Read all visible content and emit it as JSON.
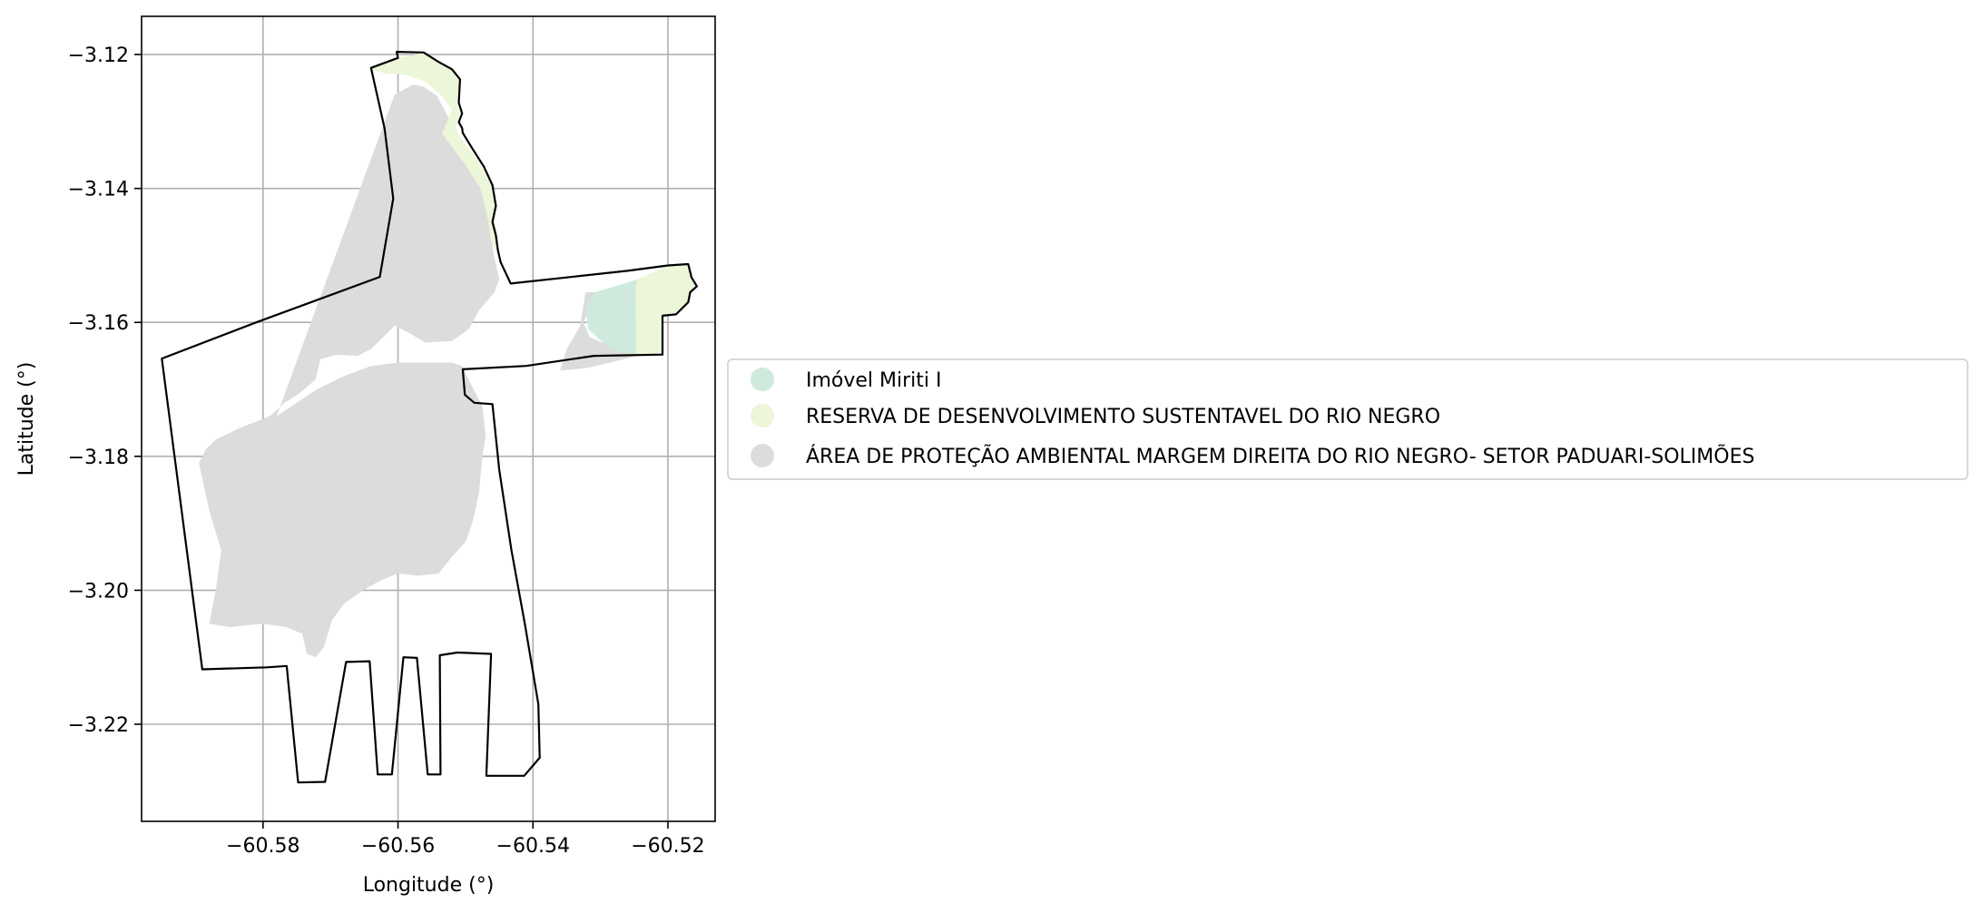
{
  "map": {
    "x_axis": {
      "label": "Longitude (°)",
      "range": [
        -60.598,
        -60.513
      ],
      "ticks": [
        -60.58,
        -60.56,
        -60.54,
        -60.52
      ],
      "tick_labels": [
        "−60.58",
        "−60.56",
        "−60.54",
        "−60.52"
      ]
    },
    "y_axis": {
      "label": "Latitude (°)",
      "range": [
        -3.2345,
        -3.1143
      ],
      "ticks": [
        -3.12,
        -3.14,
        -3.16,
        -3.18,
        -3.2,
        -3.22
      ],
      "tick_labels": [
        "−3.12",
        "−3.14",
        "−3.16",
        "−3.18",
        "−3.20",
        "−3.22"
      ]
    },
    "grid": true,
    "legend": {
      "placement": "center-left outside plot",
      "entries": [
        {
          "label": "Imóvel Miriti I",
          "color": "#cfeadc"
        },
        {
          "label": "RESERVA DE DESENVOLVIMENTO SUSTENTAVEL DO RIO NEGRO",
          "color": "#ecf6d8"
        },
        {
          "label": "ÁREA DE PROTEÇÃO AMBIENTAL MARGEM DIREITA DO RIO NEGRO- SETOR PADUARI-SOLIMÕES",
          "color": "#dcdcdc"
        }
      ]
    },
    "layers": {
      "boundary": {
        "color": "#000000",
        "rings": [
          [
            [
              -60.5602,
              -3.1196
            ],
            [
              -60.5562,
              -3.1197
            ],
            [
              -60.554,
              -3.1211
            ],
            [
              -60.552,
              -3.1222
            ],
            [
              -60.5508,
              -3.1237
            ],
            [
              -60.551,
              -3.1272
            ],
            [
              -60.5505,
              -3.1288
            ],
            [
              -60.551,
              -3.1301
            ],
            [
              -60.5505,
              -3.131
            ],
            [
              -60.5504,
              -3.1317
            ],
            [
              -60.549,
              -3.134
            ],
            [
              -60.5473,
              -3.1367
            ],
            [
              -60.546,
              -3.1395
            ],
            [
              -60.5455,
              -3.1426
            ],
            [
              -60.546,
              -3.145
            ],
            [
              -60.5455,
              -3.147
            ],
            [
              -60.5452,
              -3.1492
            ],
            [
              -60.5448,
              -3.151
            ],
            [
              -60.5433,
              -3.1542
            ],
            [
              -60.526,
              -3.1523
            ],
            [
              -60.52,
              -3.1515
            ],
            [
              -60.517,
              -3.1513
            ],
            [
              -60.5165,
              -3.1533
            ],
            [
              -60.5157,
              -3.1546
            ],
            [
              -60.5167,
              -3.1555
            ],
            [
              -60.517,
              -3.157
            ],
            [
              -60.5188,
              -3.1588
            ],
            [
              -60.5208,
              -3.159
            ],
            [
              -60.5208,
              -3.1648
            ],
            [
              -60.531,
              -3.165
            ],
            [
              -60.541,
              -3.1665
            ],
            [
              -60.5504,
              -3.167
            ],
            [
              -60.5501,
              -3.1708
            ],
            [
              -60.5487,
              -3.172
            ],
            [
              -60.546,
              -3.1722
            ],
            [
              -60.545,
              -3.182
            ],
            [
              -60.5432,
              -3.194
            ],
            [
              -60.5412,
              -3.205
            ],
            [
              -60.5392,
              -3.217
            ],
            [
              -60.539,
              -3.225
            ],
            [
              -60.5413,
              -3.2277
            ],
            [
              -60.5469,
              -3.2277
            ],
            [
              -60.5462,
              -3.2095
            ],
            [
              -60.5512,
              -3.2093
            ],
            [
              -60.5538,
              -3.2097
            ],
            [
              -60.5537,
              -3.2275
            ],
            [
              -60.5556,
              -3.2275
            ],
            [
              -60.5572,
              -3.2101
            ],
            [
              -60.5592,
              -3.21
            ],
            [
              -60.5609,
              -3.2275
            ],
            [
              -60.563,
              -3.2275
            ],
            [
              -60.5642,
              -3.2106
            ],
            [
              -60.5677,
              -3.2107
            ],
            [
              -60.5708,
              -3.2286
            ],
            [
              -60.5748,
              -3.2287
            ],
            [
              -60.5765,
              -3.2113
            ],
            [
              -60.5794,
              -3.2115
            ],
            [
              -60.589,
              -3.2118
            ],
            [
              -60.595,
              -3.1654
            ],
            [
              -60.581,
              -3.16
            ],
            [
              -60.5627,
              -3.1532
            ],
            [
              -60.5607,
              -3.1415
            ],
            [
              -60.562,
              -3.131
            ],
            [
              -60.564,
              -3.122
            ],
            [
              -60.56,
              -3.1205
            ],
            [
              -60.5602,
              -3.1196
            ]
          ]
        ]
      },
      "miriti": {
        "color": "#cfeadc",
        "polygon": [
          [
            -60.5308,
            -3.1555
          ],
          [
            -60.5245,
            -3.1536
          ],
          [
            -60.5248,
            -3.1545
          ],
          [
            -60.5247,
            -3.165
          ],
          [
            -60.5286,
            -3.164
          ],
          [
            -60.5318,
            -3.161
          ],
          [
            -60.5322,
            -3.158
          ]
        ]
      },
      "reserva": {
        "color": "#ecf6d8",
        "polygons": [
          [
            [
              -60.5642,
              -3.1222
            ],
            [
              -60.56,
              -3.1205
            ],
            [
              -60.5562,
              -3.1198
            ],
            [
              -60.554,
              -3.1211
            ],
            [
              -60.552,
              -3.1222
            ],
            [
              -60.551,
              -3.124
            ],
            [
              -60.5513,
              -3.1272
            ],
            [
              -60.5509,
              -3.129
            ],
            [
              -60.5515,
              -3.131
            ],
            [
              -60.55,
              -3.1335
            ],
            [
              -60.548,
              -3.136
            ],
            [
              -60.5462,
              -3.1395
            ],
            [
              -60.5455,
              -3.143
            ],
            [
              -60.5457,
              -3.145
            ],
            [
              -60.5452,
              -3.1475
            ],
            [
              -60.5455,
              -3.1493
            ],
            [
              -60.5462,
              -3.1478
            ],
            [
              -60.5468,
              -3.144
            ],
            [
              -60.5478,
              -3.14
            ],
            [
              -60.55,
              -3.1365
            ],
            [
              -60.552,
              -3.1338
            ],
            [
              -60.5535,
              -3.1318
            ],
            [
              -60.5528,
              -3.1302
            ],
            [
              -60.552,
              -3.1282
            ],
            [
              -60.5535,
              -3.1262
            ],
            [
              -60.556,
              -3.124
            ],
            [
              -60.559,
              -3.123
            ],
            [
              -60.562,
              -3.1228
            ]
          ],
          [
            [
              -60.5245,
              -3.1536
            ],
            [
              -60.52,
              -3.1515
            ],
            [
              -60.5172,
              -3.1514
            ],
            [
              -60.5166,
              -3.1533
            ],
            [
              -60.5158,
              -3.1546
            ],
            [
              -60.5168,
              -3.1556
            ],
            [
              -60.5171,
              -3.1571
            ],
            [
              -60.5189,
              -3.1587
            ],
            [
              -60.5208,
              -3.1592
            ],
            [
              -60.5208,
              -3.1648
            ],
            [
              -60.5247,
              -3.165
            ],
            [
              -60.5248,
              -3.1545
            ]
          ]
        ]
      },
      "apa": {
        "color": "#dcdcdc",
        "polygons": [
          [
            [
              -60.5605,
              -3.126
            ],
            [
              -60.5578,
              -3.1245
            ],
            [
              -60.5562,
              -3.1248
            ],
            [
              -60.5542,
              -3.1262
            ],
            [
              -60.553,
              -3.1285
            ],
            [
              -60.552,
              -3.1305
            ],
            [
              -60.5508,
              -3.133
            ],
            [
              -60.5485,
              -3.136
            ],
            [
              -60.547,
              -3.1395
            ],
            [
              -60.546,
              -3.143
            ],
            [
              -60.5462,
              -3.1465
            ],
            [
              -60.5458,
              -3.15
            ],
            [
              -60.545,
              -3.1535
            ],
            [
              -60.5457,
              -3.1555
            ],
            [
              -60.548,
              -3.1582
            ],
            [
              -60.5495,
              -3.161
            ],
            [
              -60.552,
              -3.1628
            ],
            [
              -60.556,
              -3.163
            ],
            [
              -60.5585,
              -3.1615
            ],
            [
              -60.5605,
              -3.1605
            ],
            [
              -60.562,
              -3.162
            ],
            [
              -60.564,
              -3.164
            ],
            [
              -60.566,
              -3.165
            ],
            [
              -60.569,
              -3.1648
            ],
            [
              -60.5715,
              -3.1655
            ],
            [
              -60.5722,
              -3.1685
            ],
            [
              -60.5745,
              -3.1705
            ],
            [
              -60.5768,
              -3.172
            ],
            [
              -60.579,
              -3.174
            ],
            [
              -60.5835,
              -3.1758
            ],
            [
              -60.587,
              -3.1775
            ],
            [
              -60.5885,
              -3.179
            ],
            [
              -60.5895,
              -3.181
            ],
            [
              -60.588,
              -3.188
            ],
            [
              -60.5862,
              -3.194
            ],
            [
              -60.587,
              -3.2
            ],
            [
              -60.588,
              -3.205
            ],
            [
              -60.585,
              -3.2055
            ],
            [
              -60.58,
              -3.205
            ],
            [
              -60.5765,
              -3.2055
            ],
            [
              -60.5742,
              -3.2065
            ],
            [
              -60.5735,
              -3.2095
            ],
            [
              -60.5722,
              -3.21
            ],
            [
              -60.571,
              -3.2085
            ],
            [
              -60.5698,
              -3.2045
            ],
            [
              -60.568,
              -3.202
            ],
            [
              -60.5652,
              -3.2
            ],
            [
              -60.5625,
              -3.1985
            ],
            [
              -60.56,
              -3.1975
            ],
            [
              -60.557,
              -3.1978
            ],
            [
              -60.554,
              -3.1975
            ],
            [
              -60.552,
              -3.195
            ],
            [
              -60.55,
              -3.1928
            ],
            [
              -60.549,
              -3.19
            ],
            [
              -60.548,
              -3.1855
            ],
            [
              -60.5475,
              -3.18
            ],
            [
              -60.547,
              -3.177
            ],
            [
              -60.5475,
              -3.1725
            ],
            [
              -60.5488,
              -3.17
            ],
            [
              -60.5498,
              -3.168
            ],
            [
              -60.5505,
              -3.1665
            ],
            [
              -60.552,
              -3.166
            ],
            [
              -60.556,
              -3.166
            ],
            [
              -60.56,
              -3.166
            ],
            [
              -60.564,
              -3.1665
            ],
            [
              -60.568,
              -3.168
            ],
            [
              -60.572,
              -3.17
            ],
            [
              -60.575,
              -3.172
            ],
            [
              -60.578,
              -3.174
            ]
          ],
          [
            [
              -60.5322,
              -3.1555
            ],
            [
              -60.5308,
              -3.1555
            ],
            [
              -60.5325,
              -3.16
            ],
            [
              -60.5316,
              -3.1622
            ],
            [
              -60.5275,
              -3.164
            ],
            [
              -60.5247,
              -3.165
            ],
            [
              -60.5285,
              -3.166
            ],
            [
              -60.532,
              -3.1668
            ],
            [
              -60.536,
              -3.1672
            ],
            [
              -60.535,
              -3.164
            ],
            [
              -60.533,
              -3.1605
            ]
          ]
        ]
      }
    }
  }
}
